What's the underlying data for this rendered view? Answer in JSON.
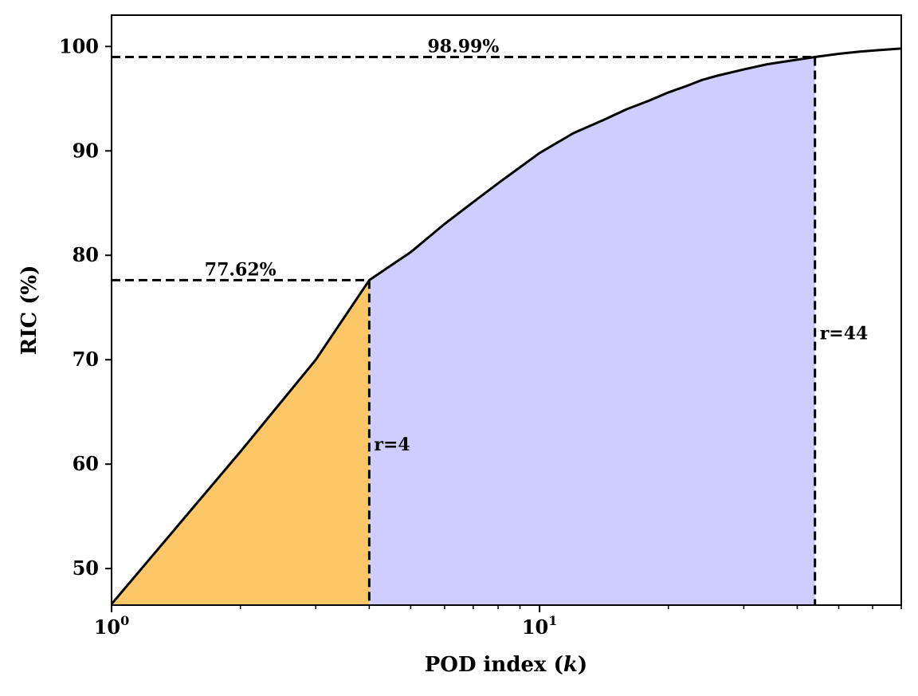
{
  "chart_data": {
    "type": "area",
    "xscale": "log",
    "xlim": [
      1,
      70
    ],
    "ylim": [
      46.5,
      103
    ],
    "xlabel": "POD index (k)",
    "ylabel": "RIC (%)",
    "title": "",
    "grid": false,
    "x_ticks": [
      {
        "value": 1,
        "base": "10",
        "exp": "0"
      },
      {
        "value": 10,
        "base": "10",
        "exp": "1"
      }
    ],
    "y_ticks": [
      50,
      60,
      70,
      80,
      90,
      100
    ],
    "series": [
      {
        "x": [
          1,
          2,
          3,
          4,
          5,
          6,
          7,
          8,
          10,
          12,
          14,
          16,
          18,
          20,
          22,
          24,
          26,
          30,
          34,
          38,
          44,
          50,
          56,
          62,
          70
        ],
        "y": [
          46.6,
          61.2,
          70.0,
          77.62,
          80.3,
          83.0,
          85.1,
          86.9,
          89.8,
          91.7,
          92.9,
          94.0,
          94.8,
          95.6,
          96.2,
          96.8,
          97.2,
          97.8,
          98.3,
          98.6,
          98.99,
          99.3,
          99.5,
          99.65,
          99.8
        ],
        "color": "#000000"
      }
    ],
    "fills": [
      {
        "from": 1,
        "to": 4,
        "color": "#fdc666"
      },
      {
        "from": 4,
        "to": 44,
        "color": "#cecdfe"
      }
    ],
    "reference_lines": [
      {
        "r": 4,
        "ric": 77.62,
        "value_label": "77.62%",
        "r_label": "r=4"
      },
      {
        "r": 44,
        "ric": 98.99,
        "value_label": "98.99%",
        "r_label": "r=44"
      }
    ]
  }
}
